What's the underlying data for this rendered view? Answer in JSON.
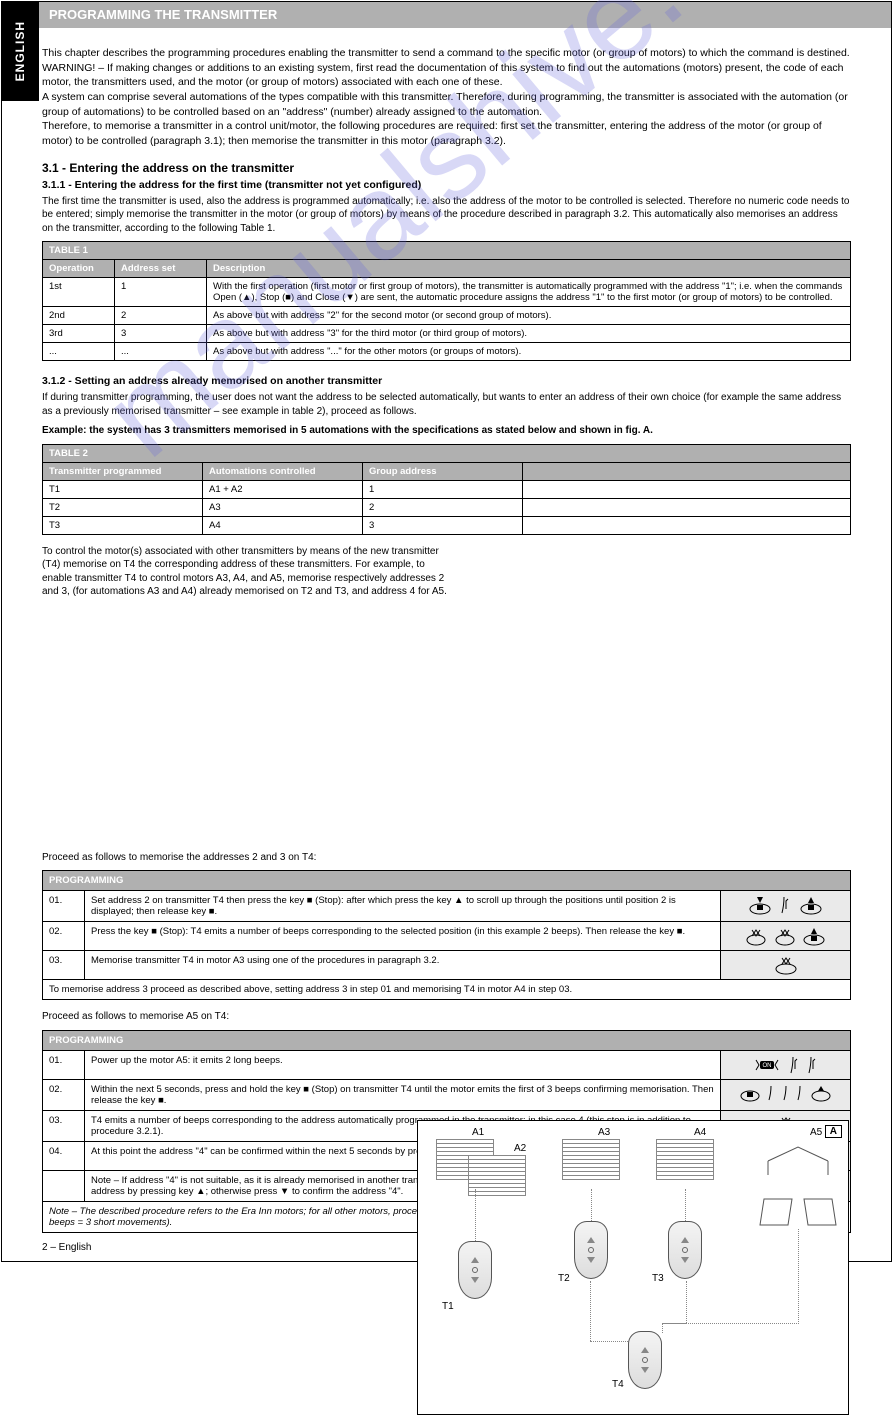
{
  "tab": "ENGLISH",
  "header": "PROGRAMMING THE TRANSMITTER",
  "intro": "This chapter describes the programming procedures enabling the transmitter to send a command to the specific motor (or group of motors) to which the command is destined.\nWARNING! – If making changes or additions to an existing system, first read the documentation of this system to find out the automations (motors) present, the code of each motor, the transmitters used, and the motor (or group of motors) associated with each one of these.\nA system can comprise several automations of the types compatible with this transmitter. Therefore, during programming, the transmitter is associated with the automation (or group of automations) to be controlled based on an \"address\" (number) already assigned to the automation.\nTherefore, to memorise a transmitter in a control unit/motor, the following procedures are required: first set the transmitter, entering the address of the motor (or group of motor) to be controlled (paragraph 3.1); then memorise the transmitter in this motor (paragraph 3.2).",
  "s31_title": "3.1 - Entering the address on the transmitter",
  "s311_title": "3.1.1 - Entering the address for the first time (transmitter not yet configured)",
  "s311_desc": "The first time the transmitter is used, also the address is programmed automatically; i.e. also the address of the motor to be controlled is selected. Therefore no numeric code needs to be entered; simply memorise the transmitter in the motor (or group of motors) by means of the procedure described in paragraph 3.2. This automatically also memorises an address on the transmitter, according to the following Table 1.",
  "table1": {
    "title": "TABLE 1",
    "headers": [
      "Operation",
      "Address set",
      "Description"
    ],
    "rows": [
      [
        "1st",
        "1",
        "With the first operation (first motor or first group of motors), the transmitter is automatically programmed with the address \"1\"; i.e. when the commands Open (▲), Stop (■) and Close (▼) are sent, the automatic procedure assigns the address \"1\" to the first motor (or group of motors) to be controlled."
      ],
      [
        "2nd",
        "2",
        "As above but with address \"2\" for the second motor (or second group of motors)."
      ],
      [
        "3rd",
        "3",
        "As above but with address \"3\" for the third motor (or third group of motors)."
      ],
      [
        "...",
        "...",
        "As above but with address \"...\" for the other motors (or groups of motors)."
      ]
    ]
  },
  "s312_title": "3.1.2 - Setting an address already memorised on another transmitter",
  "s312_desc": "If during transmitter programming, the user does not want the address to be selected automatically, but wants to enter an address of their own choice (for example the same address as a previously memorised transmitter – see example in table 2), proceed as follows.",
  "table2_intro": "Example: the system has 3 transmitters memorised in 5 automations with the specifications as stated below and shown in fig. A.",
  "table2": {
    "title": "TABLE 2",
    "headers": [
      "Transmitter programmed",
      "Automations controlled",
      "Group address",
      ""
    ],
    "rows": [
      [
        "T1",
        "A1 + A2",
        "1",
        ""
      ],
      [
        "T2",
        "A3",
        "2",
        ""
      ],
      [
        "T3",
        "A4",
        "3",
        ""
      ]
    ]
  },
  "two_col_text": "To control the motor(s) associated with other transmitters by means of the new transmitter (T4) memorise on T4 the corresponding address of these transmitters. For example, to enable transmitter T4 to control motors A3, A4, and A5, memorise respectively addresses 2 and 3, (for automations A3 and A4) already memorised on T2 and T3, and address 4 for A5.",
  "proc1_intro": "Proceed as follows to memorise the addresses 2 and 3 on T4:",
  "proc1": {
    "title": "PROGRAMMING",
    "rows": [
      [
        "01.",
        "Set address 2 on transmitter T4 then press the key ■ (Stop): after which press the key ▲ to scroll up through the positions until position 2 is displayed; then release key ■."
      ],
      [
        "02.",
        "Press the key ■ (Stop): T4 emits a number of beeps corresponding to the selected position (in this example 2 beeps). Then release the key ■."
      ],
      [
        "03.",
        "Memorise transmitter T4 in motor A3 using one of the procedures in paragraph 3.2."
      ]
    ],
    "note": "To memorise address 3 proceed as described above, setting address 3 in step 01 and memorising T4 in motor A4 in step 03."
  },
  "proc2_intro": "Proceed as follows to memorise A5 on T4:",
  "proc2": {
    "title": "PROGRAMMING",
    "rows": [
      [
        "01.",
        "Power up the motor A5: it emits 2 long beeps."
      ],
      [
        "02.",
        "Within the next 5 seconds, press and hold the key ■ (Stop) on transmitter T4 until the motor emits the first of 3 beeps confirming memorisation. Then release the key ■."
      ],
      [
        "03.",
        "T4 emits a number of beeps corresponding to the address automatically programmed in the transmitter; in this case 4 (this step is in addition to procedure 3.2.1)."
      ],
      [
        "04.",
        "At this point the address \"4\" can be confirmed within the next 5 seconds by pressing any key on the transmitter."
      ],
      [
        "",
        "Note – If address \"4\" is not suitable, as it is already memorised in another transmitter/group, then within 5 seconds scroll to move to the next free address by pressing key ▲; otherwise press ▼ to confirm the address \"4\"."
      ]
    ],
    "footnote": "Note – The described procedure refers to the Era Inn motors; for all other motors, proceed in the same way, replacing the beeps with movements (2 long beeps = 2 long movements; 3 short beeps = 3 short movements)."
  },
  "page_num": "2 – English",
  "diagram": {
    "labels": {
      "A1": "A1",
      "A2": "A2",
      "A3": "A3",
      "A4": "A4",
      "A5": "A5",
      "T1": "T1",
      "T2": "T2",
      "T3": "T3",
      "T4": "T4",
      "fig": "A"
    },
    "blind_lines": 10
  }
}
